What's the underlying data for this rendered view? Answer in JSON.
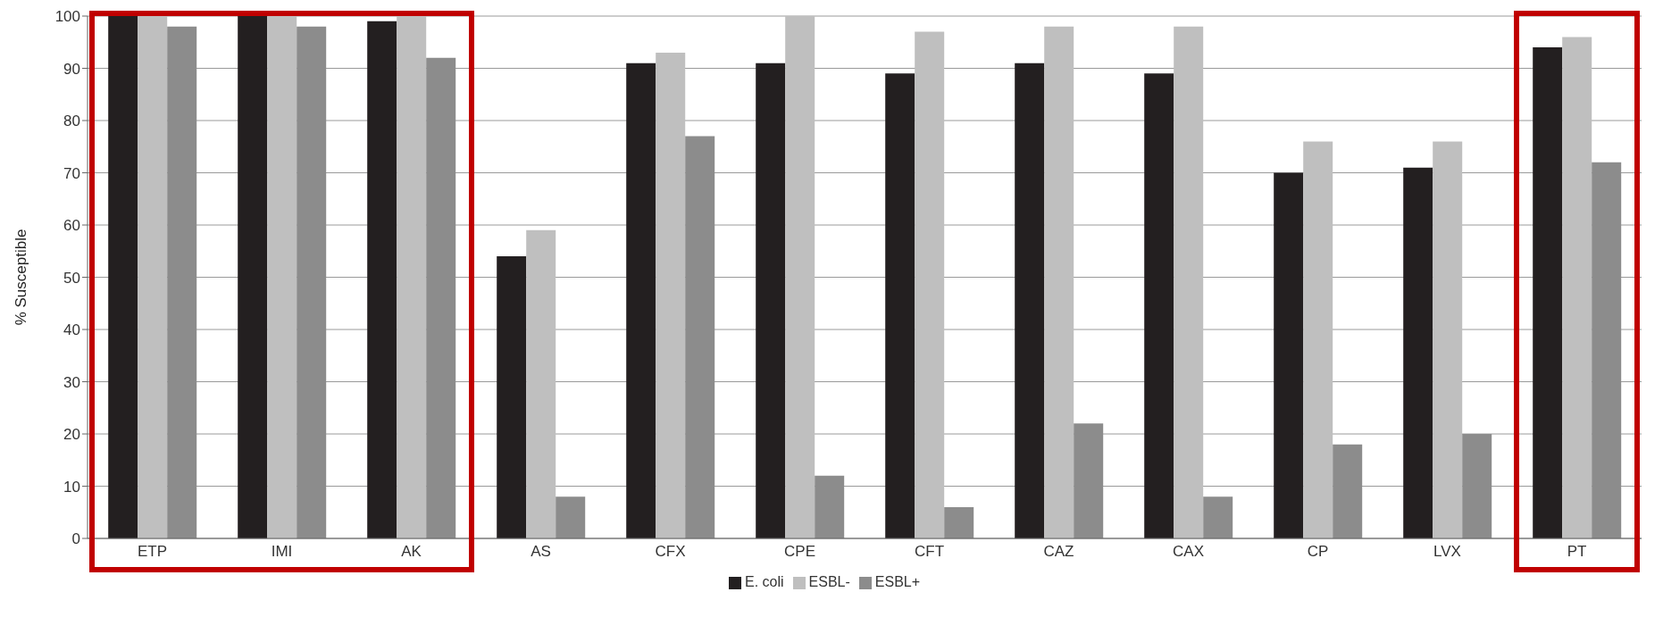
{
  "chart_data": {
    "type": "bar",
    "ylabel": "% Susceptible",
    "categories": [
      "ETP",
      "IMI",
      "AK",
      "AS",
      "CFX",
      "CPE",
      "CFT",
      "CAZ",
      "CAX",
      "CP",
      "LVX",
      "PT"
    ],
    "series": [
      {
        "name": "E. coli",
        "color": "#231f20",
        "values": [
          100,
          100,
          99,
          54,
          91,
          91,
          89,
          91,
          89,
          70,
          71,
          94
        ]
      },
      {
        "name": "ESBL-",
        "color": "#bfbfbf",
        "values": [
          100,
          100,
          100,
          59,
          93,
          100,
          97,
          98,
          98,
          76,
          76,
          96
        ]
      },
      {
        "name": "ESBL+",
        "color": "#8c8c8c",
        "values": [
          98,
          98,
          92,
          8,
          77,
          12,
          6,
          22,
          8,
          18,
          20,
          72
        ]
      }
    ],
    "ylim": [
      0,
      100
    ],
    "yticks": [
      0,
      10,
      20,
      30,
      40,
      50,
      60,
      70,
      80,
      90,
      100
    ],
    "grid": "y",
    "legend": "bottom"
  }
}
